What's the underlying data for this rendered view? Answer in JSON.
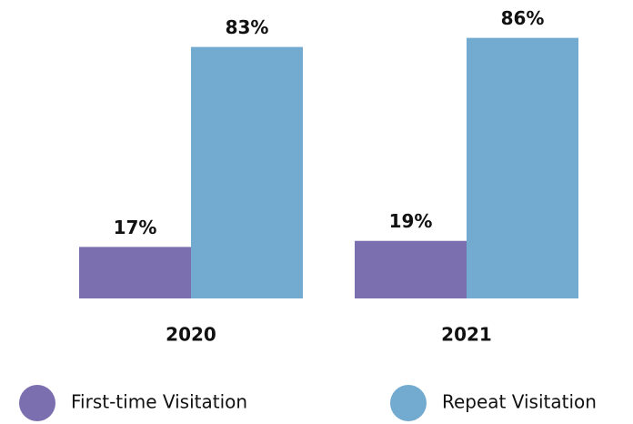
{
  "chart_data": {
    "type": "bar",
    "categories": [
      "2020",
      "2021"
    ],
    "series": [
      {
        "name": "First-time Visitation",
        "color": "#7b6fb0",
        "values": [
          17,
          19
        ],
        "value_labels": [
          "17%",
          "19%"
        ]
      },
      {
        "name": "Repeat Visitation",
        "color": "#73aacf",
        "values": [
          83,
          86
        ],
        "value_labels": [
          "83%",
          "86%"
        ]
      }
    ]
  }
}
